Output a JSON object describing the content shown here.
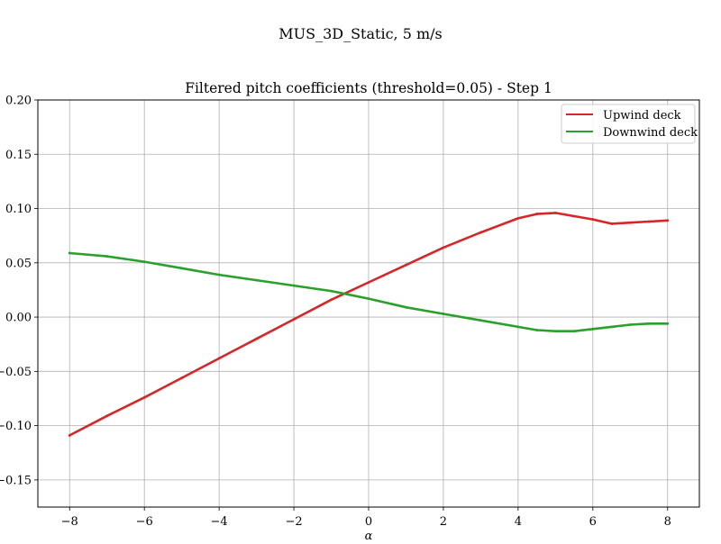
{
  "figure_title": "MUS_3D_Static, 5 m/s",
  "colors": {
    "upwind": "#d62728",
    "downwind": "#2ca02c",
    "grid": "#b0b0b0"
  },
  "chart_data": {
    "type": "line",
    "title": "Filtered pitch coefficients (threshold=0.05) - Step 1",
    "xlabel": "α",
    "ylabel": "",
    "xlim": [
      -8.85,
      8.85
    ],
    "ylim": [
      -0.175,
      0.2
    ],
    "xticks": [
      -8,
      -6,
      -4,
      -2,
      0,
      2,
      4,
      6,
      8
    ],
    "xtick_labels": [
      "−8",
      "−6",
      "−4",
      "−2",
      "0",
      "2",
      "4",
      "6",
      "8"
    ],
    "yticks": [
      -0.15,
      -0.1,
      -0.05,
      0.0,
      0.05,
      0.1,
      0.15,
      0.2
    ],
    "ytick_labels": [
      "−0.15",
      "−0.10",
      "−0.05",
      "0.00",
      "0.05",
      "0.10",
      "0.15",
      "0.20"
    ],
    "grid": true,
    "legend_position": "top-right",
    "series": [
      {
        "name": "Upwind deck",
        "color": "#d62728",
        "x": [
          -8,
          -7,
          -6,
          -5,
          -4,
          -3,
          -2,
          -1,
          0,
          1,
          2,
          3,
          4,
          4.5,
          5,
          5.5,
          6,
          6.5,
          7,
          7.5,
          8
        ],
        "y": [
          -0.109,
          -0.091,
          -0.074,
          -0.056,
          -0.038,
          -0.02,
          -0.002,
          0.016,
          0.032,
          0.048,
          0.064,
          0.078,
          0.091,
          0.095,
          0.096,
          0.093,
          0.09,
          0.086,
          0.087,
          0.088,
          0.089
        ]
      },
      {
        "name": "Downwind deck",
        "color": "#2ca02c",
        "x": [
          -8,
          -7,
          -6,
          -5,
          -4,
          -3,
          -2,
          -1,
          0,
          1,
          2,
          3,
          4,
          4.5,
          5,
          5.5,
          6,
          6.5,
          7,
          7.5,
          8
        ],
        "y": [
          0.059,
          0.056,
          0.051,
          0.045,
          0.039,
          0.034,
          0.029,
          0.024,
          0.017,
          0.009,
          0.003,
          -0.003,
          -0.009,
          -0.012,
          -0.013,
          -0.013,
          -0.011,
          -0.009,
          -0.007,
          -0.006,
          -0.006
        ]
      }
    ]
  }
}
